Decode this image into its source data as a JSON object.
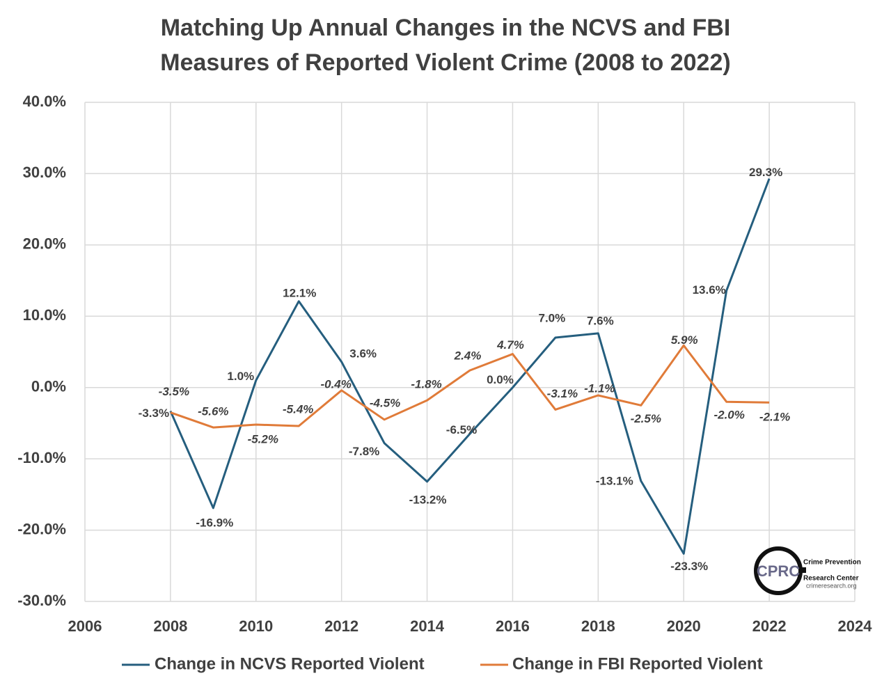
{
  "chart_data": {
    "type": "line",
    "title": [
      "Matching Up Annual Changes in the NCVS and FBI",
      "Measures of Reported Violent Crime (2008 to 2022)"
    ],
    "x": [
      2008,
      2009,
      2010,
      2011,
      2012,
      2013,
      2014,
      2015,
      2016,
      2017,
      2018,
      2019,
      2020,
      2021,
      2022
    ],
    "series": [
      {
        "name": "Change in NCVS Reported Violent",
        "color": "#255e7e",
        "values": [
          -3.3,
          -16.9,
          1.0,
          12.1,
          3.6,
          -7.8,
          -13.2,
          -6.5,
          0.0,
          7.0,
          7.6,
          -13.1,
          -23.3,
          13.6,
          29.3
        ],
        "value_labels": [
          "-3.3%",
          "-16.9%",
          "1.0%",
          "12.1%",
          "3.6%",
          "-7.8%",
          "-13.2%",
          "-6.5%",
          "0.0%",
          "7.0%",
          "7.6%",
          "-13.1%",
          "-23.3%",
          "13.6%",
          "29.3%"
        ]
      },
      {
        "name": "Change in FBI Reported Violent",
        "color": "#e07b39",
        "values": [
          -3.5,
          -5.6,
          -5.2,
          -5.4,
          -0.4,
          -4.5,
          -1.8,
          2.4,
          4.7,
          -3.1,
          -1.1,
          -2.5,
          5.9,
          -2.0,
          -2.1
        ],
        "value_labels": [
          "-3.5%",
          "-5.6%",
          "-5.2%",
          "-5.4%",
          "-0.4%",
          "-4.5%",
          "-1.8%",
          "2.4%",
          "4.7%",
          "-3.1%",
          "-1.1%",
          "-2.5%",
          "5.9%",
          "-2.0%",
          "-2.1%"
        ]
      }
    ],
    "xlim": [
      2006,
      2024
    ],
    "xticks": [
      2006,
      2008,
      2010,
      2012,
      2014,
      2016,
      2018,
      2020,
      2022,
      2024
    ],
    "ylim": [
      -30,
      40
    ],
    "yticks": [
      {
        "value": -30,
        "label": "-30.0%"
      },
      {
        "value": -20,
        "label": "-20.0%"
      },
      {
        "value": -10,
        "label": "-10.0%"
      },
      {
        "value": 0,
        "label": "0.0%"
      },
      {
        "value": 10,
        "label": "10.0%"
      },
      {
        "value": 20,
        "label": "20.0%"
      },
      {
        "value": 30,
        "label": "30.0%"
      },
      {
        "value": 40,
        "label": "40.0%"
      }
    ],
    "grid": true,
    "legend": "bottom",
    "logo": {
      "mark": "CPRC",
      "line1": "Crime Prevention",
      "line2": "Research Center",
      "url": "crimeresearch.org"
    }
  }
}
